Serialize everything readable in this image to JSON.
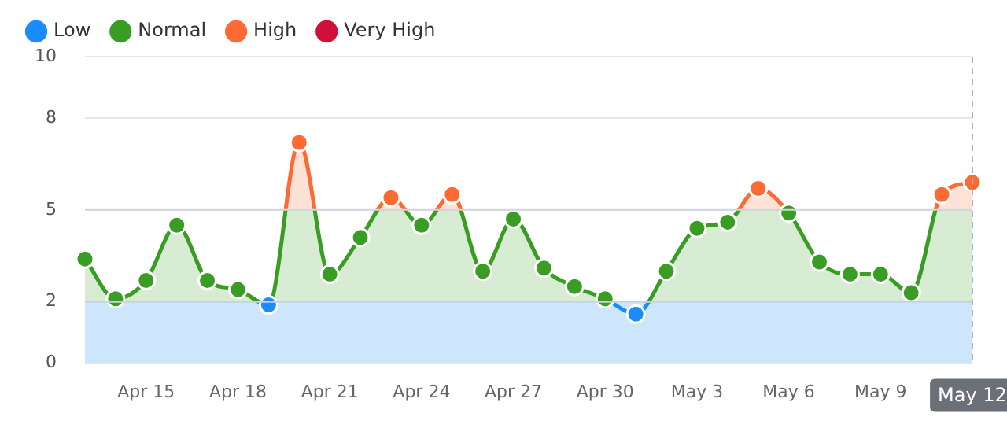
{
  "chart_data": {
    "type": "area",
    "categories": [
      null,
      null,
      "Apr 15",
      null,
      null,
      "Apr 18",
      null,
      null,
      "Apr 21",
      null,
      null,
      "Apr 24",
      null,
      null,
      "Apr 27",
      null,
      null,
      "Apr 30",
      null,
      null,
      "May 3",
      null,
      null,
      "May 6",
      null,
      null,
      "May 9",
      null,
      null,
      "May 12"
    ],
    "series": [
      {
        "color": "#3a9d23",
        "marker": "none",
        "values": [
          3.4,
          2.1,
          2.7,
          4.5,
          2.7,
          2.4,
          1.9,
          7.2,
          2.9,
          4.1,
          5.4,
          4.5,
          5.5,
          3.0,
          4.7,
          3.1,
          2.5,
          2.1,
          1.6,
          3.0,
          4.4,
          4.6,
          5.7,
          4.9,
          3.3,
          2.9,
          2.9,
          2.3,
          5.5,
          5.9
        ]
      },
      {
        "type": "scatter",
        "name": "Low",
        "color": "#1a8cff",
        "values": [
          null,
          null,
          null,
          null,
          null,
          null,
          1.9,
          null,
          null,
          null,
          null,
          null,
          null,
          null,
          null,
          null,
          null,
          null,
          1.6,
          null,
          null,
          null,
          null,
          null,
          null,
          null,
          null,
          null,
          null,
          null
        ]
      },
      {
        "type": "scatter",
        "name": "Normal",
        "color": "#3a9d23",
        "values": [
          3.4,
          2.1,
          2.7,
          4.5,
          2.7,
          2.4,
          null,
          null,
          2.9,
          4.1,
          null,
          4.5,
          null,
          3.0,
          4.7,
          3.1,
          2.5,
          2.1,
          null,
          3.0,
          4.4,
          4.6,
          null,
          4.9,
          3.3,
          2.9,
          2.9,
          2.3,
          null,
          null
        ]
      },
      {
        "type": "scatter",
        "name": "High",
        "color": "#ff6a33",
        "values": [
          null,
          null,
          null,
          null,
          null,
          null,
          null,
          7.2,
          null,
          null,
          5.4,
          null,
          5.5,
          null,
          null,
          null,
          null,
          null,
          null,
          null,
          null,
          null,
          5.7,
          null,
          null,
          null,
          null,
          null,
          5.5,
          5.9
        ]
      },
      {
        "type": "scatter",
        "name": "Very High",
        "color": "#d0103a",
        "values": [
          null,
          null,
          null,
          null,
          null,
          null,
          null,
          null,
          null,
          null,
          null,
          null,
          null,
          null,
          null,
          null,
          null,
          null,
          null,
          null,
          null,
          null,
          null,
          null,
          null,
          null,
          null,
          null,
          null,
          null
        ]
      }
    ],
    "bands": [
      {
        "axis": "y",
        "from": 0,
        "to": 2,
        "color": "#cde6fb"
      }
    ],
    "ref_lines": [
      {
        "axis": "y",
        "value": 2,
        "color": "#c5d3e0",
        "line_style": "solid"
      },
      {
        "axis": "y",
        "value": 5,
        "color": "#d3d7dd",
        "line_style": "solid"
      },
      {
        "axis": "x",
        "value": "May 12",
        "color": "#b0b4ba",
        "line_style": "dashed"
      }
    ],
    "ylim": [
      0,
      10
    ],
    "yticks": [
      0,
      2,
      5,
      8,
      10
    ],
    "grid": "y",
    "legend": "top left",
    "marker": "circle"
  }
}
